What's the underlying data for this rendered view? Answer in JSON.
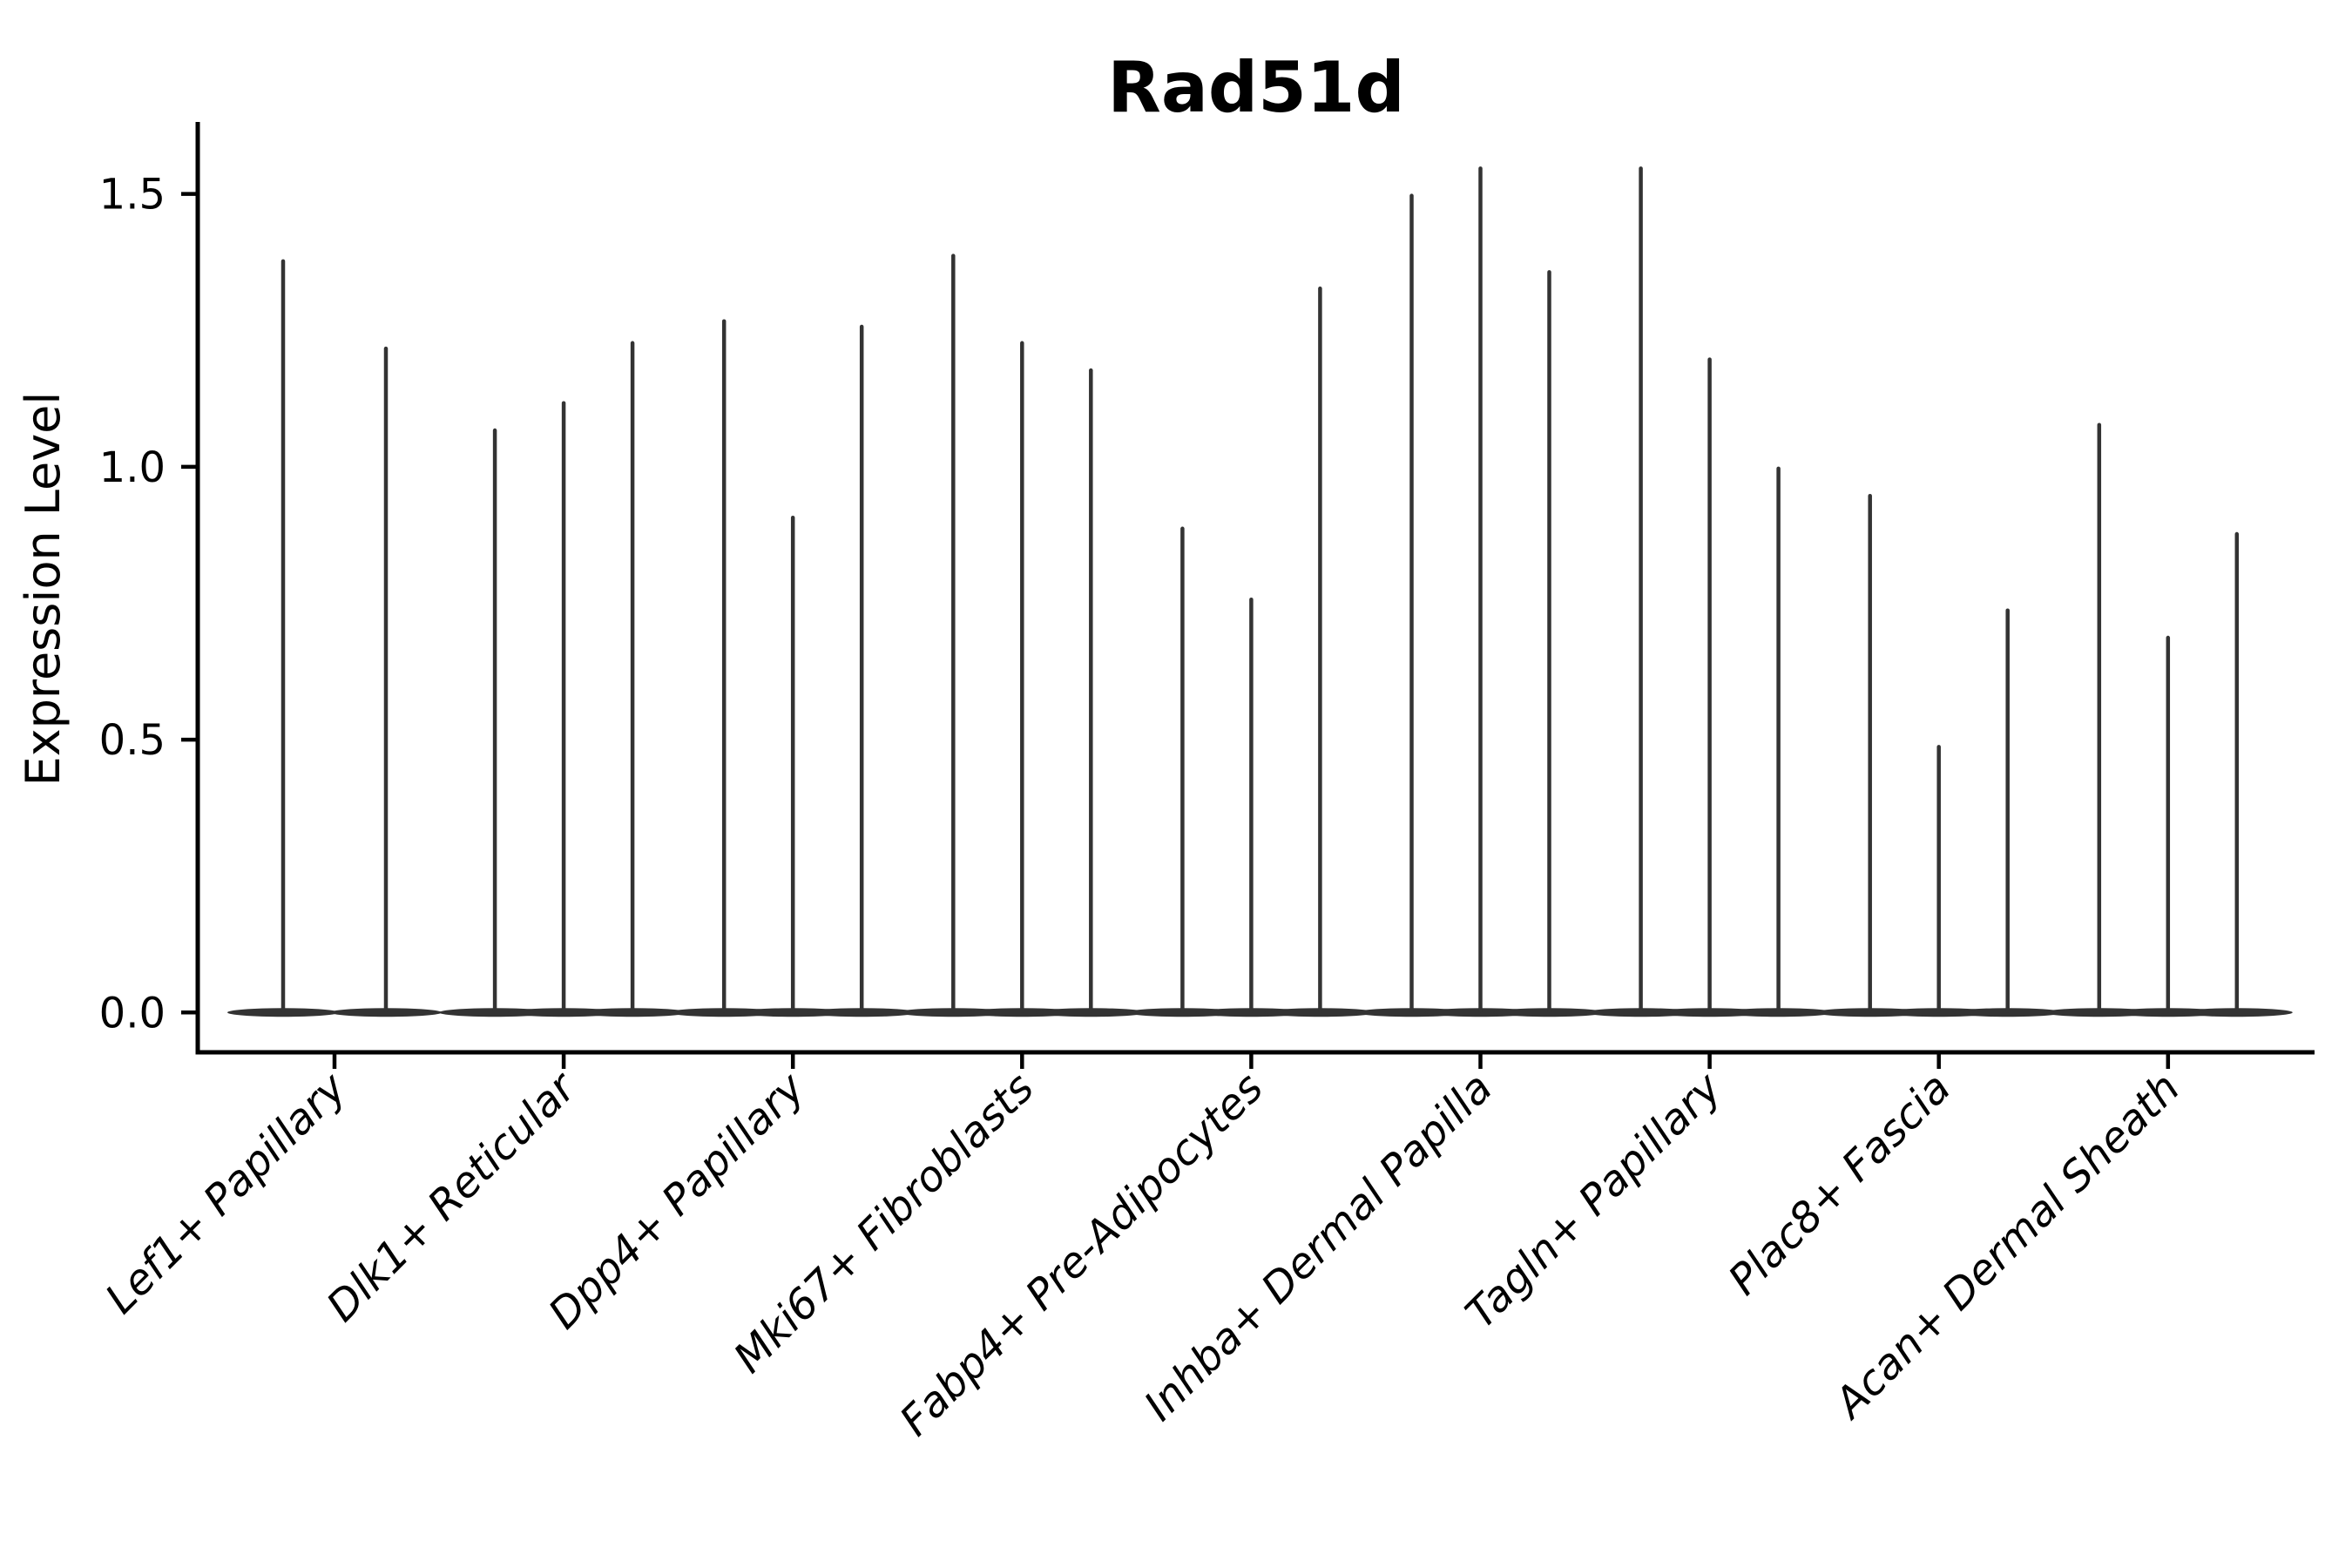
{
  "title": "Rad51d",
  "axes": {
    "ylabel": "Expression Level",
    "xlabel": "",
    "ytick_labels": [
      "1.5",
      "1.0",
      "0.5",
      "0.0"
    ],
    "ytick_values": [
      1.5,
      1.0,
      0.5,
      0.0
    ]
  },
  "colors": {
    "violin": "#333333",
    "axis": "#000000",
    "text": "#000000",
    "background": "#ffffff"
  },
  "chart_data": {
    "type": "violin",
    "title": "Rad51d",
    "xlabel": "",
    "ylabel": "Expression Level",
    "ylim": [
      -0.073,
      1.632
    ],
    "yticks": [
      0.0,
      0.5,
      1.0,
      1.5
    ],
    "grid": false,
    "legend": "none",
    "description": "Single-cell expression violin plot; each category holds thin violins with dense mass at 0 and a narrow spike rising to the maximum expression value.",
    "baseline_value": 0.0,
    "categories": [
      "Lef1+ Papillary",
      "Dlk1+ Reticular",
      "Dpp4+ Papillary",
      "Mki67+ Fibroblasts",
      "Fabp4+ Pre-Adipocytes",
      "Inhba+ Dermal Papilla",
      "Tagln+ Papillary",
      "Plac8+ Fascia",
      "Acan+ Dermal Sheath"
    ],
    "groups": [
      {
        "category": "Lef1+ Papillary",
        "violin_max_values": [
          1.38,
          1.22
        ]
      },
      {
        "category": "Dlk1+ Reticular",
        "violin_max_values": [
          1.07,
          1.12,
          1.23
        ]
      },
      {
        "category": "Dpp4+ Papillary",
        "violin_max_values": [
          1.27,
          0.91,
          1.26
        ]
      },
      {
        "category": "Mki67+ Fibroblasts",
        "violin_max_values": [
          1.39,
          1.23,
          1.18
        ]
      },
      {
        "category": "Fabp4+ Pre-Adipocytes",
        "violin_max_values": [
          0.89,
          0.76,
          1.33
        ]
      },
      {
        "category": "Inhba+ Dermal Papilla",
        "violin_max_values": [
          1.5,
          1.55,
          1.36
        ]
      },
      {
        "category": "Tagln+ Papillary",
        "violin_max_values": [
          1.55,
          1.2,
          1.0
        ]
      },
      {
        "category": "Plac8+ Fascia",
        "violin_max_values": [
          0.95,
          0.49,
          0.74
        ]
      },
      {
        "category": "Acan+ Dermal Sheath",
        "violin_max_values": [
          1.08,
          0.69,
          0.88
        ]
      }
    ]
  }
}
